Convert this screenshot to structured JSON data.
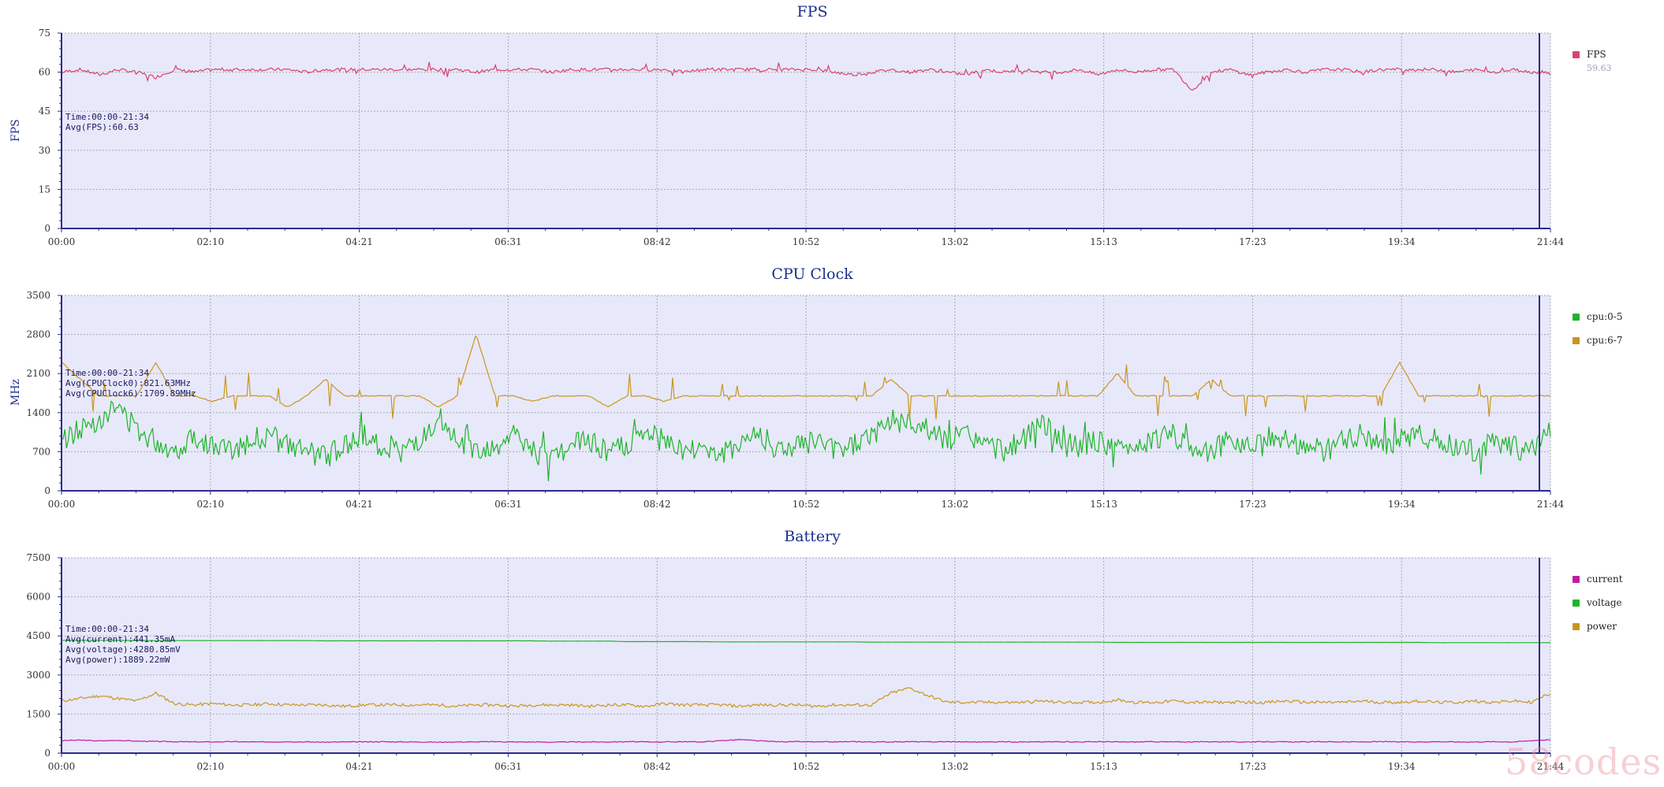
{
  "charts": [
    {
      "id": "fps",
      "title": "FPS",
      "ylabel": "FPS",
      "yticks": [
        "0",
        "15",
        "30",
        "45",
        "60",
        "75"
      ],
      "ymax": 75,
      "annotations": [
        "Time:00:00-21:34",
        "Avg(FPS):60.63"
      ],
      "legend": [
        {
          "name": "FPS",
          "color": "#d9436b",
          "sub": "59.63"
        }
      ]
    },
    {
      "id": "cpu",
      "title": "CPU Clock",
      "ylabel": "MHz",
      "yticks": [
        "0",
        "700",
        "1400",
        "2100",
        "2800",
        "3500"
      ],
      "ymax": 3500,
      "annotations": [
        "Time:00:00-21:34",
        "Avg(CPUClock0):821.63MHz",
        "Avg(CPUClock6):1709.89MHz"
      ],
      "legend": [
        {
          "name": "cpu:0-5",
          "color": "#1db52a"
        },
        {
          "name": "cpu:6-7",
          "color": "#c9961c"
        }
      ]
    },
    {
      "id": "battery",
      "title": "Battery",
      "ylabel": "",
      "yticks": [
        "0",
        "1500",
        "3000",
        "4500",
        "6000",
        "7500"
      ],
      "ymax": 7500,
      "annotations": [
        "Time:00:00-21:34",
        "Avg(current):441.35mA",
        "Avg(voltage):4280.85mV",
        "Avg(power):1889.22mW"
      ],
      "legend": [
        {
          "name": "current",
          "color": "#c21c9e"
        },
        {
          "name": "voltage",
          "color": "#1db52a"
        },
        {
          "name": "power",
          "color": "#c9961c"
        }
      ]
    }
  ],
  "x_ticks": [
    "00:00",
    "02:10",
    "04:21",
    "06:31",
    "08:42",
    "10:52",
    "13:02",
    "15:13",
    "17:23",
    "19:34",
    "21:44"
  ],
  "watermark": "58codes",
  "colors": {
    "plot_bg": "#e8e8fb",
    "axis": "#2c2c8c",
    "grid": "#aaaaaa",
    "title": "#1c2f8c"
  },
  "chart_data": [
    {
      "type": "line",
      "title": "FPS",
      "xlabel": "",
      "ylabel": "FPS",
      "ylim": [
        0,
        75
      ],
      "x_range": [
        "00:00",
        "21:44"
      ],
      "cursor_at": "21:34",
      "grid": true,
      "legend_position": "right",
      "series": [
        {
          "name": "FPS",
          "color": "#d9436b",
          "mean": 60.63,
          "min": 53,
          "max": 62,
          "samples": [
            60,
            61,
            59,
            61,
            60,
            58,
            61,
            60,
            61,
            61,
            61,
            61,
            61,
            60,
            61,
            61,
            61,
            61,
            61,
            61,
            61,
            61,
            60,
            61,
            61,
            61,
            60,
            61,
            61,
            61,
            61,
            61,
            61,
            60,
            61,
            61,
            61,
            61,
            61,
            61,
            61,
            60,
            59,
            60,
            61,
            60,
            61,
            60,
            59,
            61,
            60,
            61,
            60,
            60,
            61,
            59,
            61,
            60,
            61,
            61,
            53,
            60,
            61,
            59,
            60,
            61,
            60,
            61,
            61,
            60,
            61,
            61,
            61,
            61,
            60,
            61,
            60,
            61,
            60,
            60
          ]
        }
      ]
    },
    {
      "type": "line",
      "title": "CPU Clock",
      "xlabel": "",
      "ylabel": "MHz",
      "ylim": [
        0,
        3500
      ],
      "x_range": [
        "00:00",
        "21:44"
      ],
      "cursor_at": "21:34",
      "grid": true,
      "legend_position": "right",
      "series": [
        {
          "name": "cpu:0-5",
          "color": "#1db52a",
          "mean": 821.63,
          "samples": [
            900,
            1100,
            1300,
            1500,
            1100,
            900,
            700,
            1000,
            800,
            700,
            900,
            1000,
            800,
            700,
            600,
            800,
            1000,
            800,
            700,
            900,
            1100,
            900,
            700,
            800,
            1000,
            700,
            600,
            800,
            900,
            700,
            800,
            1000,
            900,
            700,
            800,
            600,
            900,
            1000,
            700,
            800,
            900,
            700,
            800,
            1000,
            1300,
            1200,
            1100,
            900,
            1000,
            800,
            700,
            900,
            1200,
            1000,
            800,
            900,
            700,
            800,
            900,
            1000,
            800,
            700,
            900,
            800,
            1000,
            900,
            800,
            700,
            900,
            1000,
            800,
            900,
            1000,
            900,
            800,
            700,
            900,
            800,
            700,
            1100
          ]
        },
        {
          "name": "cpu:6-7",
          "color": "#c9961c",
          "mean": 1709.89,
          "samples": [
            2300,
            2000,
            1700,
            1700,
            1700,
            2300,
            1700,
            1700,
            1600,
            1700,
            1700,
            1700,
            1500,
            1700,
            2000,
            1700,
            1700,
            1700,
            1700,
            1700,
            1500,
            1700,
            2800,
            1700,
            1700,
            1600,
            1700,
            1700,
            1700,
            1500,
            1700,
            1700,
            1600,
            1700,
            1700,
            1700,
            1700,
            1700,
            1700,
            1700,
            1700,
            1700,
            1700,
            1700,
            2000,
            1700,
            1700,
            1700,
            1700,
            1700,
            1700,
            1700,
            1700,
            1700,
            1700,
            1700,
            2100,
            1700,
            1700,
            1700,
            1700,
            2000,
            1700,
            1700,
            1700,
            1700,
            1700,
            1700,
            1700,
            1700,
            1700,
            2300,
            1700,
            1700,
            1700,
            1700,
            1700,
            1700,
            1700,
            1700
          ]
        }
      ]
    },
    {
      "type": "line",
      "title": "Battery",
      "xlabel": "",
      "ylabel": "",
      "ylim": [
        0,
        7500
      ],
      "x_range": [
        "00:00",
        "21:44"
      ],
      "cursor_at": "21:34",
      "grid": true,
      "legend_position": "right",
      "series": [
        {
          "name": "current",
          "color": "#c21c9e",
          "mean": 441.35,
          "samples": [
            480,
            500,
            470,
            490,
            460,
            450,
            440,
            430,
            430,
            440,
            430,
            430,
            440,
            430,
            420,
            430,
            430,
            440,
            430,
            430,
            420,
            430,
            430,
            440,
            430,
            430,
            420,
            430,
            430,
            430,
            440,
            430,
            430,
            440,
            430,
            480,
            520,
            470,
            440,
            440,
            430,
            430,
            440,
            430,
            430,
            440,
            430,
            440,
            430,
            430,
            440,
            430,
            430,
            440,
            430,
            440,
            430,
            430,
            440,
            430,
            430,
            440,
            430,
            430,
            440,
            430,
            430,
            440,
            430,
            430,
            440,
            430,
            430,
            440,
            430,
            430,
            440,
            430,
            480,
            520
          ]
        },
        {
          "name": "voltage",
          "color": "#1db52a",
          "mean": 4280.85,
          "samples": [
            4330,
            4330,
            4330,
            4330,
            4320,
            4320,
            4320,
            4320,
            4320,
            4320,
            4320,
            4320,
            4320,
            4320,
            4310,
            4310,
            4310,
            4310,
            4310,
            4310,
            4310,
            4310,
            4310,
            4310,
            4310,
            4310,
            4300,
            4300,
            4300,
            4300,
            4280,
            4280,
            4280,
            4280,
            4280,
            4270,
            4270,
            4270,
            4270,
            4270,
            4270,
            4270,
            4270,
            4260,
            4260,
            4260,
            4260,
            4260,
            4260,
            4260,
            4260,
            4260,
            4260,
            4260,
            4260,
            4260,
            4250,
            4250,
            4250,
            4250,
            4250,
            4250,
            4250,
            4250,
            4250,
            4250,
            4250,
            4250,
            4250,
            4250,
            4250,
            4250,
            4250,
            4240,
            4240,
            4240,
            4240,
            4240,
            4240,
            4240
          ]
        },
        {
          "name": "power",
          "color": "#c9961c",
          "mean": 1889.22,
          "samples": [
            2000,
            2100,
            2200,
            2100,
            2000,
            2300,
            1900,
            1850,
            1900,
            1850,
            1850,
            1900,
            1850,
            1850,
            1850,
            1800,
            1850,
            1850,
            1850,
            1850,
            1850,
            1800,
            1850,
            1850,
            1800,
            1850,
            1850,
            1850,
            1800,
            1850,
            1850,
            1800,
            1900,
            1850,
            1850,
            1850,
            1800,
            1850,
            1850,
            1850,
            1800,
            1850,
            1850,
            1850,
            2300,
            2500,
            2200,
            1950,
            1950,
            1950,
            1950,
            1950,
            2000,
            1950,
            1950,
            1950,
            2050,
            1950,
            1950,
            2000,
            1950,
            1950,
            1950,
            1950,
            1950,
            2000,
            1950,
            1950,
            1950,
            2000,
            1950,
            1950,
            2000,
            1950,
            1950,
            2000,
            1950,
            2000,
            1950,
            2300
          ]
        }
      ]
    }
  ]
}
